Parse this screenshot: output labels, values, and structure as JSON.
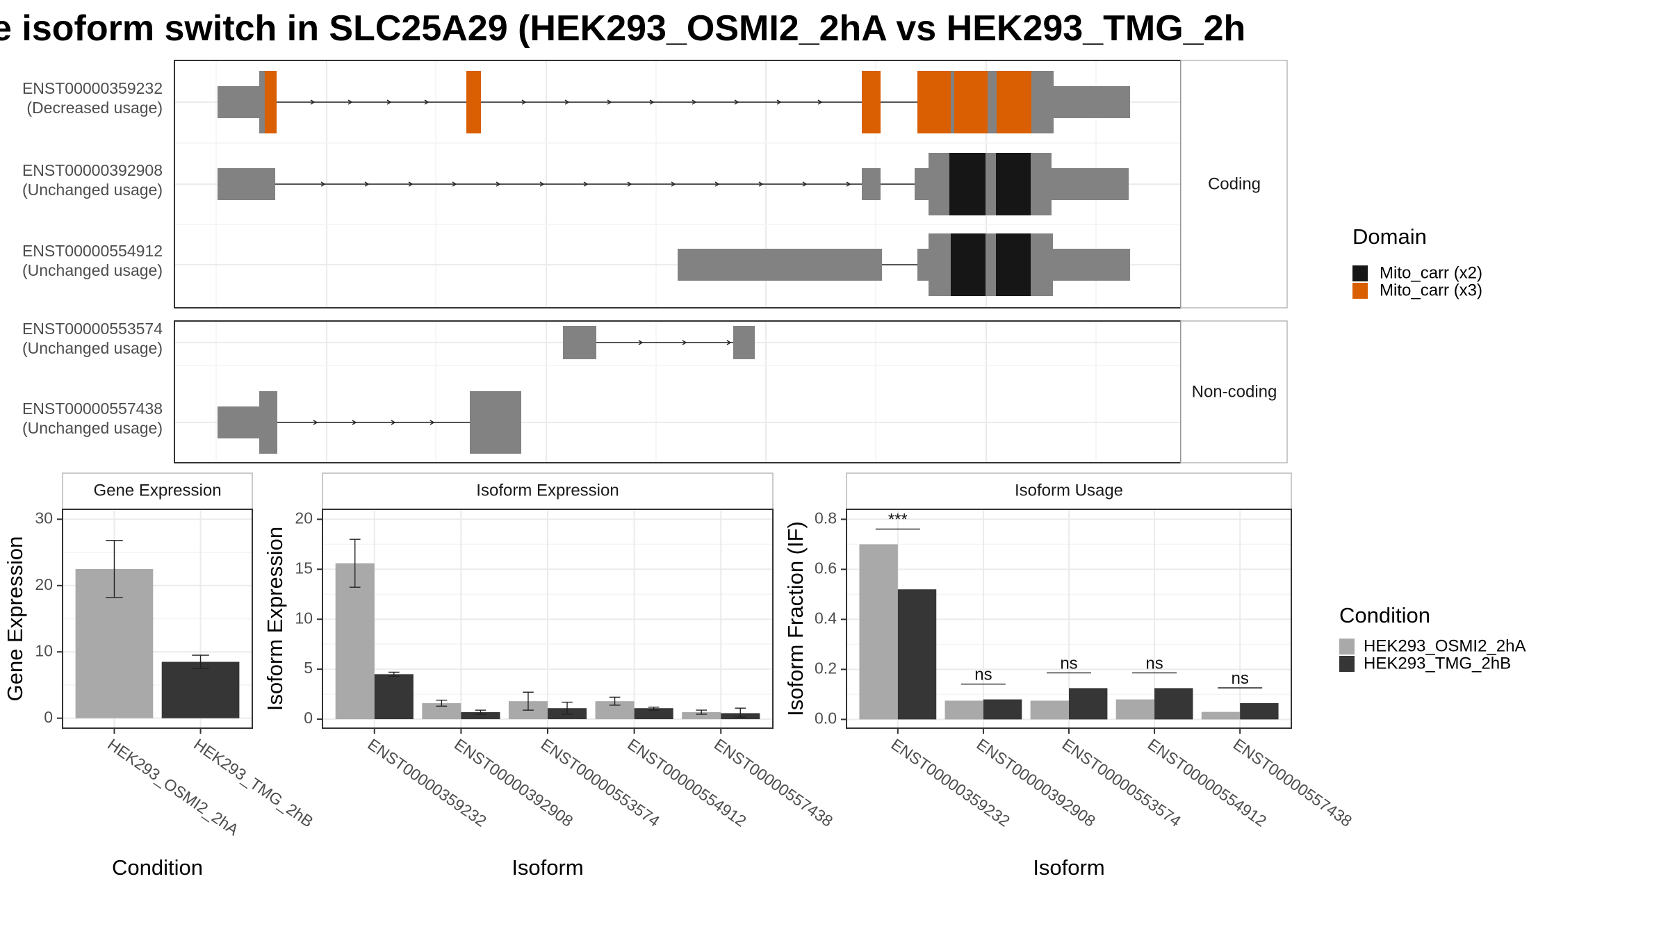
{
  "title": "e isoform switch in SLC25A29 (HEK293_OSMI2_2hA vs HEK293_TMG_2h",
  "colors": {
    "exon": "#828282",
    "mito_x2": "#161616",
    "mito_x3": "#d95f02",
    "cond_a": "#a9a9a9",
    "cond_b": "#363636",
    "grid_major": "#ebebeb",
    "grid_minor": "#f4f4f4",
    "frame": "#333333",
    "strip_border": "#b8b8b8"
  },
  "structure": {
    "facets": [
      "Coding",
      "Non-coding"
    ],
    "legend_title": "Domain",
    "legend": [
      {
        "label": "Mito_carr (x2)",
        "color": "#161616"
      },
      {
        "label": "Mito_carr (x3)",
        "color": "#d95f02"
      }
    ],
    "transcripts": [
      {
        "id": "ENST00000359232",
        "usage": "(Decreased usage)",
        "facet": "Coding"
      },
      {
        "id": "ENST00000392908",
        "usage": "(Unchanged usage)",
        "facet": "Coding"
      },
      {
        "id": "ENST00000554912",
        "usage": "(Unchanged usage)",
        "facet": "Coding"
      },
      {
        "id": "ENST00000553574",
        "usage": "(Unchanged usage)",
        "facet": "Non-coding"
      },
      {
        "id": "ENST00000557438",
        "usage": "(Unchanged usage)",
        "facet": "Non-coding"
      }
    ]
  },
  "condition_legend": {
    "title": "Condition",
    "items": [
      {
        "label": "HEK293_OSMI2_2hA",
        "color": "#a9a9a9"
      },
      {
        "label": "HEK293_TMG_2hB",
        "color": "#363636"
      }
    ]
  },
  "chart_data": [
    {
      "type": "bar",
      "title": "Gene Expression",
      "xlabel": "Condition",
      "ylabel": "Gene Expression",
      "categories": [
        "HEK293_OSMI2_2hA",
        "HEK293_TMG_2hB"
      ],
      "values": [
        22.5,
        8.5
      ],
      "errors": [
        [
          18.2,
          26.8
        ],
        [
          7.5,
          9.5
        ]
      ],
      "ylim": [
        -1.5,
        31.5
      ],
      "yticks": [
        0,
        10,
        20,
        30
      ]
    },
    {
      "type": "bar",
      "title": "Isoform Expression",
      "xlabel": "Isoform",
      "ylabel": "Isoform Expression",
      "categories": [
        "ENST00000359232",
        "ENST00000392908",
        "ENST00000553574",
        "ENST00000554912",
        "ENST00000557438"
      ],
      "series": [
        {
          "name": "HEK293_OSMI2_2hA",
          "values": [
            15.6,
            1.6,
            1.8,
            1.8,
            0.7
          ],
          "errors": [
            [
              13.2,
              18.0
            ],
            [
              1.3,
              1.9
            ],
            [
              0.9,
              2.7
            ],
            [
              1.4,
              2.2
            ],
            [
              0.5,
              0.9
            ]
          ]
        },
        {
          "name": "HEK293_TMG_2hB",
          "values": [
            4.5,
            0.7,
            1.1,
            1.1,
            0.6
          ],
          "errors": [
            [
              4.3,
              4.7
            ],
            [
              0.5,
              0.9
            ],
            [
              0.5,
              1.7
            ],
            [
              0.9,
              1.2
            ],
            [
              0.2,
              1.1
            ]
          ]
        }
      ],
      "ylim": [
        -0.9,
        21.0
      ],
      "yticks": [
        0,
        5,
        10,
        15,
        20
      ]
    },
    {
      "type": "bar",
      "title": "Isoform Usage",
      "xlabel": "Isoform",
      "ylabel": "Isoform Fraction (IF)",
      "categories": [
        "ENST00000359232",
        "ENST00000392908",
        "ENST00000553574",
        "ENST00000554912",
        "ENST00000557438"
      ],
      "series": [
        {
          "name": "HEK293_OSMI2_2hA",
          "values": [
            0.7,
            0.075,
            0.075,
            0.08,
            0.03
          ]
        },
        {
          "name": "HEK293_TMG_2hB",
          "values": [
            0.52,
            0.08,
            0.125,
            0.125,
            0.065
          ]
        }
      ],
      "significance": [
        "***",
        "ns",
        "ns",
        "ns",
        "ns"
      ],
      "ylim": [
        -0.035,
        0.84
      ],
      "yticks": [
        0.0,
        0.2,
        0.4,
        0.6,
        0.8
      ],
      "ytick_labels": [
        "0.0",
        "0.2",
        "0.4",
        "0.6",
        "0.8"
      ]
    }
  ]
}
